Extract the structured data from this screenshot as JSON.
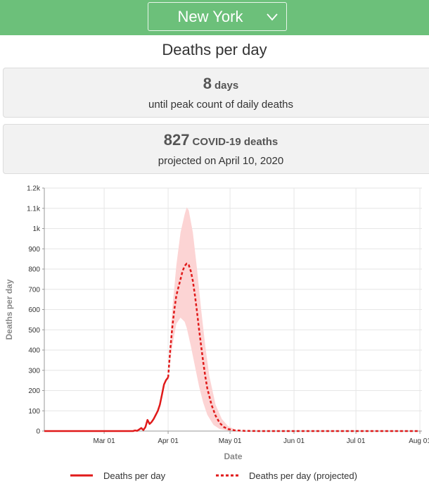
{
  "header": {
    "state_selected": "New York"
  },
  "page_title": "Deaths per day",
  "peak_card": {
    "value": "8",
    "unit": "days",
    "caption": "until peak count of daily deaths"
  },
  "projection_card": {
    "value": "827",
    "unit": "COVID-19 deaths",
    "caption": "projected on April 10, 2020"
  },
  "colors": {
    "header_bg": "#6cc07a",
    "series_red": "#e01a1a",
    "band_fill": "#fcd4d4"
  },
  "icons": {
    "dropdown": "chevron-down-icon"
  },
  "chart_data": {
    "type": "line",
    "xlabel": "Date",
    "ylabel": "Deaths per day",
    "ylim": [
      0,
      1200
    ],
    "xlim": [
      "2020-02-01",
      "2020-08-02"
    ],
    "x_ticks": [
      "2020-03-01",
      "2020-04-01",
      "2020-05-01",
      "2020-06-01",
      "2020-07-01",
      "2020-08-01"
    ],
    "x_tick_labels": [
      "Mar 01",
      "Apr 01",
      "May 01",
      "Jun 01",
      "Jul 01",
      "Aug 01"
    ],
    "y_ticks": [
      0,
      100,
      200,
      300,
      400,
      500,
      600,
      700,
      800,
      900,
      1000,
      1100,
      1200
    ],
    "y_tick_labels": [
      "0",
      "100",
      "200",
      "300",
      "400",
      "500",
      "600",
      "700",
      "800",
      "900",
      "1k",
      "1.1k",
      "1.2k"
    ],
    "grid": true,
    "legend_position": "bottom",
    "series": [
      {
        "name": "Deaths per day",
        "style": "solid",
        "points": [
          [
            "2020-02-01",
            0
          ],
          [
            "2020-03-15",
            0
          ],
          [
            "2020-03-16",
            3
          ],
          [
            "2020-03-17",
            1
          ],
          [
            "2020-03-18",
            8
          ],
          [
            "2020-03-19",
            15
          ],
          [
            "2020-03-20",
            5
          ],
          [
            "2020-03-21",
            20
          ],
          [
            "2020-03-22",
            55
          ],
          [
            "2020-03-23",
            35
          ],
          [
            "2020-03-24",
            45
          ],
          [
            "2020-03-25",
            60
          ],
          [
            "2020-03-26",
            80
          ],
          [
            "2020-03-27",
            100
          ],
          [
            "2020-03-28",
            130
          ],
          [
            "2020-03-29",
            180
          ],
          [
            "2020-03-30",
            230
          ],
          [
            "2020-03-31",
            252
          ],
          [
            "2020-04-01",
            265
          ]
        ]
      },
      {
        "name": "Deaths per day (projected)",
        "style": "dashed",
        "points": [
          [
            "2020-04-01",
            265
          ],
          [
            "2020-04-02",
            400
          ],
          [
            "2020-04-03",
            510
          ],
          [
            "2020-04-04",
            600
          ],
          [
            "2020-04-05",
            670
          ],
          [
            "2020-04-06",
            710
          ],
          [
            "2020-04-07",
            750
          ],
          [
            "2020-04-08",
            790
          ],
          [
            "2020-04-09",
            815
          ],
          [
            "2020-04-10",
            827
          ],
          [
            "2020-04-11",
            820
          ],
          [
            "2020-04-12",
            790
          ],
          [
            "2020-04-13",
            740
          ],
          [
            "2020-04-14",
            670
          ],
          [
            "2020-04-15",
            590
          ],
          [
            "2020-04-16",
            500
          ],
          [
            "2020-04-17",
            420
          ],
          [
            "2020-04-18",
            340
          ],
          [
            "2020-04-19",
            270
          ],
          [
            "2020-04-20",
            210
          ],
          [
            "2020-04-22",
            130
          ],
          [
            "2020-04-24",
            75
          ],
          [
            "2020-04-26",
            40
          ],
          [
            "2020-04-28",
            20
          ],
          [
            "2020-04-30",
            10
          ],
          [
            "2020-05-03",
            4
          ],
          [
            "2020-05-08",
            1
          ],
          [
            "2020-05-15",
            0
          ],
          [
            "2020-08-01",
            0
          ]
        ]
      }
    ],
    "uncertainty_band": {
      "upper": [
        [
          "2020-04-01",
          265
        ],
        [
          "2020-04-03",
          600
        ],
        [
          "2020-04-05",
          820
        ],
        [
          "2020-04-07",
          980
        ],
        [
          "2020-04-09",
          1070
        ],
        [
          "2020-04-10",
          1105
        ],
        [
          "2020-04-11",
          1090
        ],
        [
          "2020-04-13",
          980
        ],
        [
          "2020-04-15",
          800
        ],
        [
          "2020-04-17",
          600
        ],
        [
          "2020-04-19",
          420
        ],
        [
          "2020-04-21",
          270
        ],
        [
          "2020-04-24",
          130
        ],
        [
          "2020-04-27",
          60
        ],
        [
          "2020-04-30",
          25
        ],
        [
          "2020-05-04",
          5
        ],
        [
          "2020-05-10",
          0
        ]
      ],
      "lower": [
        [
          "2020-04-01",
          265
        ],
        [
          "2020-04-03",
          420
        ],
        [
          "2020-04-05",
          530
        ],
        [
          "2020-04-07",
          560
        ],
        [
          "2020-04-09",
          540
        ],
        [
          "2020-04-10",
          510
        ],
        [
          "2020-04-12",
          420
        ],
        [
          "2020-04-14",
          320
        ],
        [
          "2020-04-16",
          220
        ],
        [
          "2020-04-18",
          140
        ],
        [
          "2020-04-20",
          80
        ],
        [
          "2020-04-23",
          30
        ],
        [
          "2020-04-26",
          10
        ],
        [
          "2020-04-30",
          2
        ],
        [
          "2020-05-10",
          0
        ]
      ]
    }
  }
}
